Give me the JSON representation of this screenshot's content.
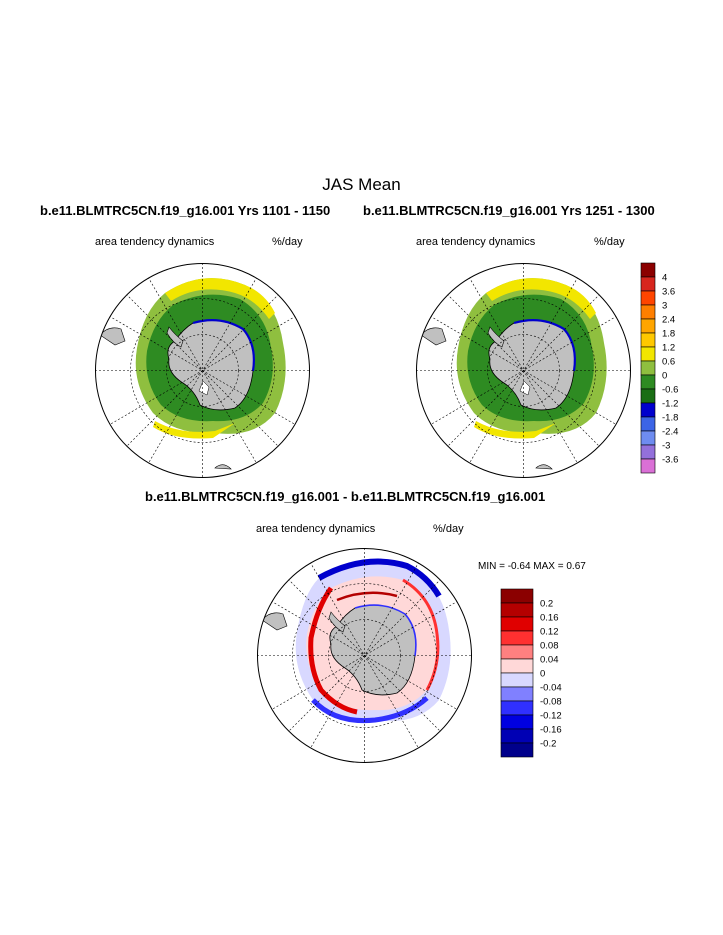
{
  "main_title": "JAS Mean",
  "panels": [
    {
      "title": "b.e11.BLMTRC5CN.f19_g16.001  Yrs 1101 - 1150",
      "left_label": "area tendency dynamics",
      "right_label": "%/day"
    },
    {
      "title": "b.e11.BLMTRC5CN.f19_g16.001  Yrs 1251 - 1300",
      "left_label": "area tendency dynamics",
      "right_label": "%/day"
    },
    {
      "title": "b.e11.BLMTRC5CN.f19_g16.001 - b.e11.BLMTRC5CN.f19_g16.001",
      "left_label": "area tendency dynamics",
      "right_label": "%/day",
      "minmax": "MIN =  -0.64 MAX =   0.67"
    }
  ],
  "colorbar_top": {
    "labels": [
      "4",
      "3.6",
      "3",
      "2.4",
      "1.8",
      "1.2",
      "0.6",
      "0",
      "-0.6",
      "-1.2",
      "-1.8",
      "-2.4",
      "-3",
      "-3.6"
    ],
    "colors": [
      "#8b0000",
      "#d7261e",
      "#ff4500",
      "#ff7f00",
      "#ffa500",
      "#ffc800",
      "#f2e600",
      "#8fbf3f",
      "#2e8b22",
      "#1a6e14",
      "#0000cd",
      "#3c64e6",
      "#6e8cf0",
      "#9370db",
      "#da70d6"
    ]
  },
  "colorbar_diff": {
    "labels": [
      "0.2",
      "0.16",
      "0.12",
      "0.08",
      "0.04",
      "0",
      "-0.04",
      "-0.08",
      "-0.12",
      "-0.16",
      "-0.2"
    ],
    "colors": [
      "#8b0000",
      "#b40000",
      "#e00000",
      "#ff3030",
      "#ff8080",
      "#ffd8d8",
      "#d8d8ff",
      "#8080ff",
      "#3030ff",
      "#0000e0",
      "#0000b4",
      "#00008b"
    ]
  }
}
